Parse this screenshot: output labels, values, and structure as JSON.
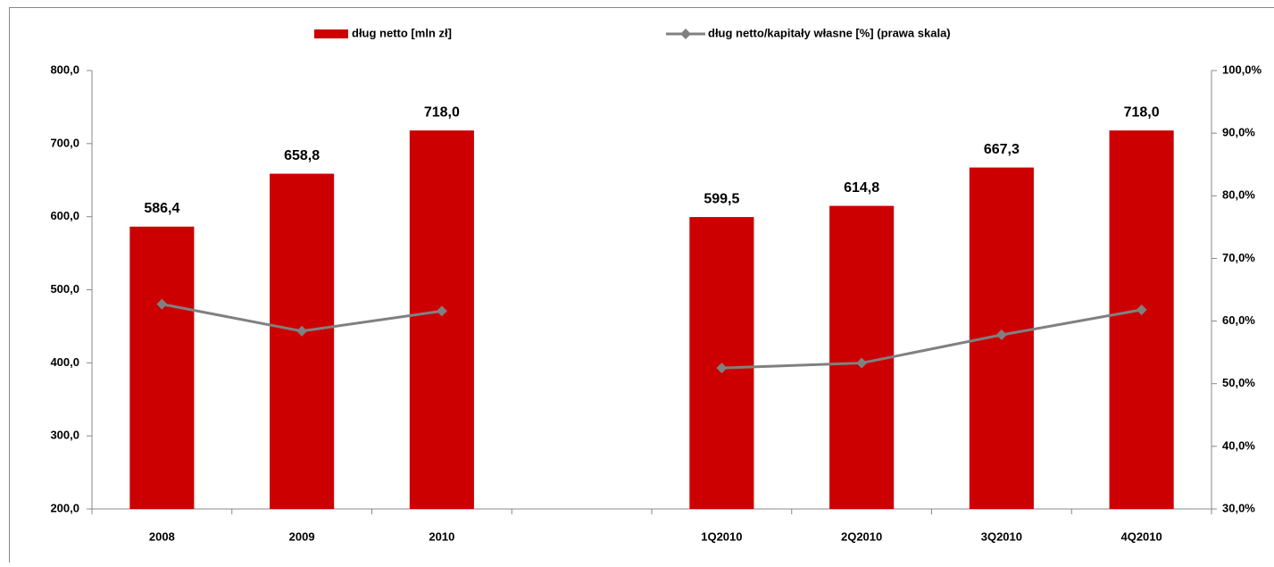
{
  "chart_data": {
    "type": "bar_line",
    "categories": [
      "2008",
      "2009",
      "2010",
      null,
      "1Q2010",
      "2Q2010",
      "3Q2010",
      "4Q2010"
    ],
    "series": [
      {
        "name": "dług netto [mln zł]",
        "color": "#cc0000",
        "type": "bar",
        "values": [
          586.4,
          658.8,
          718.0,
          null,
          599.5,
          614.8,
          667.3,
          718.0
        ],
        "value_labels": [
          "586,4",
          "658,8",
          "718,0",
          null,
          "599,5",
          "614,8",
          "667,3",
          "718,0"
        ]
      },
      {
        "name": "dług netto/kapitały własne [%] (prawa skala)",
        "color": "#808080",
        "type": "line",
        "axis": "y2",
        "values": [
          62.7,
          58.4,
          61.6,
          null,
          52.5,
          53.3,
          57.8,
          61.8
        ]
      }
    ],
    "ylim": [
      200,
      800
    ],
    "yticks": [
      {
        "value": 200,
        "label": "200,0"
      },
      {
        "value": 300,
        "label": "300,0"
      },
      {
        "value": 400,
        "label": "400,0"
      },
      {
        "value": 500,
        "label": "500,0"
      },
      {
        "value": 600,
        "label": "600,0"
      },
      {
        "value": 700,
        "label": "700,0"
      },
      {
        "value": 800,
        "label": "800,0"
      }
    ],
    "y2lim": [
      30,
      100
    ],
    "y2ticks": [
      {
        "value": 30,
        "label": "30,0%"
      },
      {
        "value": 40,
        "label": "40,0%"
      },
      {
        "value": 50,
        "label": "50,0%"
      },
      {
        "value": 60,
        "label": "60,0%"
      },
      {
        "value": 70,
        "label": "70,0%"
      },
      {
        "value": 80,
        "label": "80,0%"
      },
      {
        "value": 90,
        "label": "90,0%"
      },
      {
        "value": 100,
        "label": "100,0%"
      }
    ],
    "grid": false,
    "legend": "top"
  }
}
